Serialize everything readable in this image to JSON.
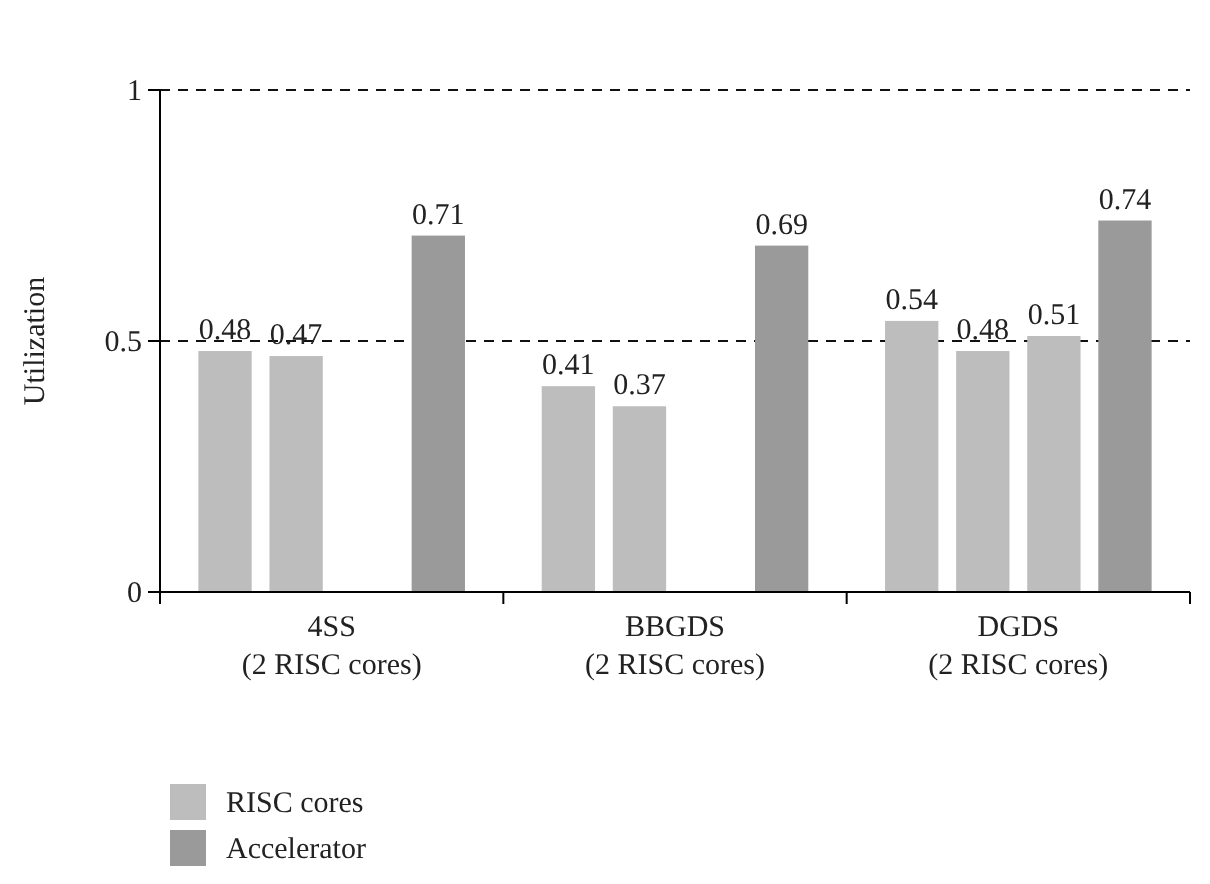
{
  "chart_data": {
    "type": "bar",
    "ylabel": "Utilization",
    "categories": [
      "4SS\n(2 RISC cores)",
      "BBGDS\n(2 RISC cores)",
      "DGDS\n(2 RISC cores)"
    ],
    "series": [
      {
        "name": "RISC cores",
        "color": "#bdbdbd",
        "values": [
          0.48,
          0.41,
          0.54
        ]
      },
      {
        "color": "#bdbdbd",
        "values": [
          0.47,
          0.37,
          0.48
        ]
      },
      {
        "color": "#bdbdbd",
        "values": [
          null,
          null,
          0.51
        ]
      },
      {
        "name": "Accelerator",
        "color": "#9a9a9a",
        "values": [
          0.71,
          0.69,
          0.74
        ]
      }
    ],
    "ylim": [
      0,
      1
    ],
    "yticks": [
      0,
      0.5,
      1
    ],
    "grid": "y",
    "line_style": "dashed",
    "data_labels": true,
    "legend": "bottom left"
  }
}
